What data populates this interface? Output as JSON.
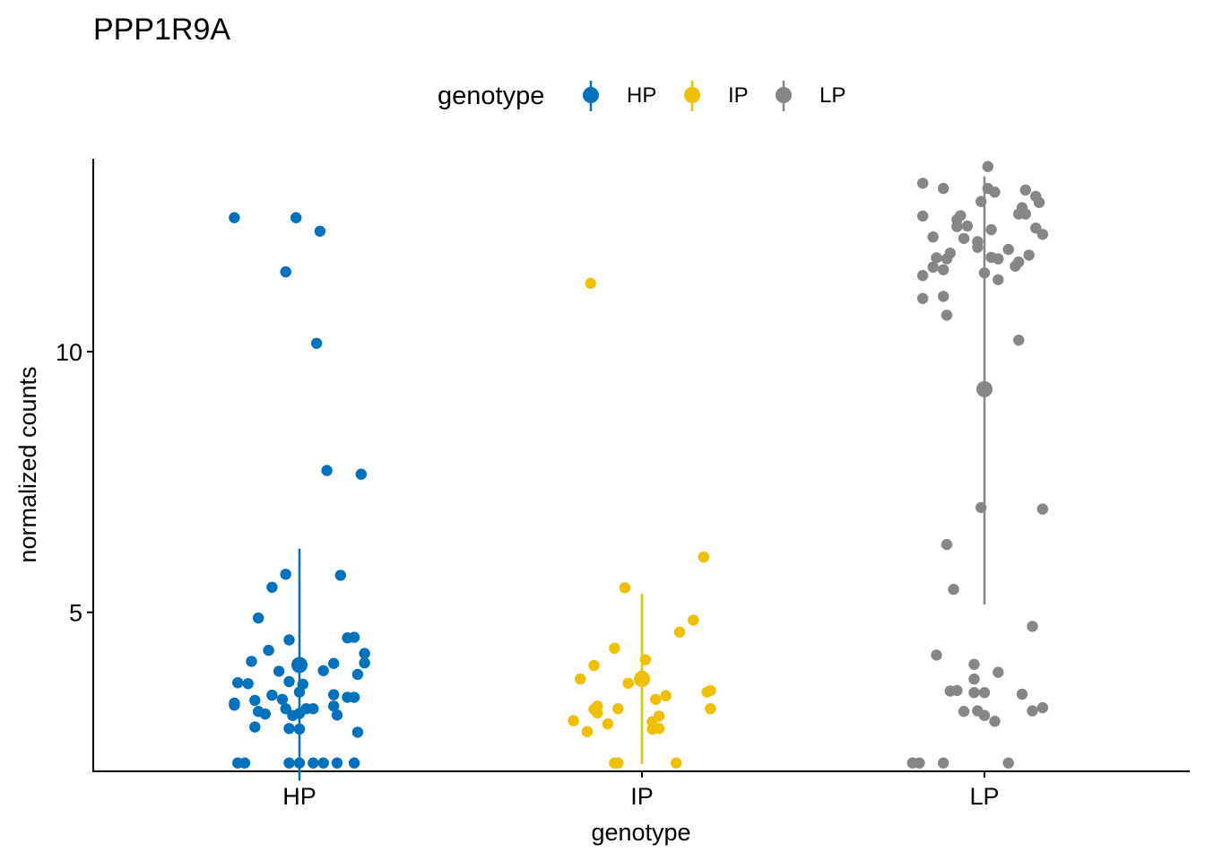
{
  "chart_data": {
    "type": "scatter",
    "title": "PPP1R9A",
    "xlabel": "genotype",
    "ylabel": "normalized counts",
    "categories": [
      "HP",
      "IP",
      "LP"
    ],
    "yticks": [
      5,
      10
    ],
    "ylim": [
      1.95,
      13.7
    ],
    "grid": false,
    "legend": {
      "title": "genotype",
      "position": "top",
      "entries": [
        "HP",
        "IP",
        "LP"
      ]
    },
    "series": [
      {
        "name": "HP",
        "color": "#0072BD",
        "summary": {
          "mean": 3.99,
          "low": 1.77,
          "high": 6.22
        },
        "points": [
          {
            "x": -0.19,
            "y": 12.57
          },
          {
            "x": 0.06,
            "y": 12.31
          },
          {
            "x": -0.01,
            "y": 12.57
          },
          {
            "x": -0.04,
            "y": 11.53
          },
          {
            "x": 0.05,
            "y": 10.16
          },
          {
            "x": 0.08,
            "y": 7.72
          },
          {
            "x": 0.18,
            "y": 7.65
          },
          {
            "x": -0.04,
            "y": 5.73
          },
          {
            "x": 0.12,
            "y": 5.71
          },
          {
            "x": -0.08,
            "y": 5.48
          },
          {
            "x": -0.12,
            "y": 4.89
          },
          {
            "x": -0.03,
            "y": 4.47
          },
          {
            "x": 0.14,
            "y": 4.51
          },
          {
            "x": 0.16,
            "y": 4.52
          },
          {
            "x": -0.09,
            "y": 4.27
          },
          {
            "x": 0.19,
            "y": 4.21
          },
          {
            "x": 0.1,
            "y": 4.02
          },
          {
            "x": -0.14,
            "y": 4.06
          },
          {
            "x": 0.19,
            "y": 4.03
          },
          {
            "x": -0.06,
            "y": 3.87
          },
          {
            "x": 0.07,
            "y": 3.88
          },
          {
            "x": 0.17,
            "y": 3.81
          },
          {
            "x": -0.18,
            "y": 3.65
          },
          {
            "x": -0.15,
            "y": 3.63
          },
          {
            "x": 0.01,
            "y": 3.62
          },
          {
            "x": -0.03,
            "y": 3.67
          },
          {
            "x": 0.1,
            "y": 3.42
          },
          {
            "x": 0.14,
            "y": 3.37
          },
          {
            "x": 0.16,
            "y": 3.37
          },
          {
            "x": -0.08,
            "y": 3.41
          },
          {
            "x": -0.05,
            "y": 3.33
          },
          {
            "x": 0.0,
            "y": 3.47
          },
          {
            "x": -0.13,
            "y": 3.31
          },
          {
            "x": -0.19,
            "y": 3.26
          },
          {
            "x": -0.19,
            "y": 3.22
          },
          {
            "x": 0.1,
            "y": 3.2
          },
          {
            "x": -0.04,
            "y": 3.15
          },
          {
            "x": 0.02,
            "y": 3.15
          },
          {
            "x": -0.12,
            "y": 3.1
          },
          {
            "x": -0.1,
            "y": 3.05
          },
          {
            "x": 0.04,
            "y": 3.15
          },
          {
            "x": -0.02,
            "y": 3.02
          },
          {
            "x": 0.11,
            "y": 3.03
          },
          {
            "x": 0.0,
            "y": 3.06
          },
          {
            "x": -0.13,
            "y": 2.8
          },
          {
            "x": -0.03,
            "y": 2.77
          },
          {
            "x": 0.0,
            "y": 2.76
          },
          {
            "x": 0.17,
            "y": 2.7
          },
          {
            "x": -0.18,
            "y": 2.11
          },
          {
            "x": -0.16,
            "y": 2.11
          },
          {
            "x": -0.03,
            "y": 2.11
          },
          {
            "x": 0.0,
            "y": 2.11
          },
          {
            "x": 0.04,
            "y": 2.11
          },
          {
            "x": 0.07,
            "y": 2.11
          },
          {
            "x": 0.11,
            "y": 2.11
          },
          {
            "x": 0.16,
            "y": 2.11
          }
        ]
      },
      {
        "name": "IP",
        "color": "#EFC000",
        "summary": {
          "mean": 3.72,
          "low": 2.09,
          "high": 5.36
        },
        "points": [
          {
            "x": -0.15,
            "y": 11.31
          },
          {
            "x": 0.18,
            "y": 6.06
          },
          {
            "x": -0.05,
            "y": 5.47
          },
          {
            "x": 0.15,
            "y": 4.85
          },
          {
            "x": 0.11,
            "y": 4.62
          },
          {
            "x": -0.08,
            "y": 4.31
          },
          {
            "x": 0.01,
            "y": 4.09
          },
          {
            "x": -0.14,
            "y": 3.98
          },
          {
            "x": -0.18,
            "y": 3.72
          },
          {
            "x": 0.0,
            "y": 3.78
          },
          {
            "x": -0.04,
            "y": 3.64
          },
          {
            "x": 0.2,
            "y": 3.5
          },
          {
            "x": 0.19,
            "y": 3.47
          },
          {
            "x": 0.07,
            "y": 3.4
          },
          {
            "x": 0.04,
            "y": 3.33
          },
          {
            "x": -0.13,
            "y": 3.2
          },
          {
            "x": -0.14,
            "y": 3.14
          },
          {
            "x": -0.07,
            "y": 3.15
          },
          {
            "x": 0.2,
            "y": 3.15
          },
          {
            "x": -0.13,
            "y": 3.07
          },
          {
            "x": 0.05,
            "y": 3.01
          },
          {
            "x": 0.03,
            "y": 2.9
          },
          {
            "x": -0.1,
            "y": 2.86
          },
          {
            "x": -0.2,
            "y": 2.92
          },
          {
            "x": 0.05,
            "y": 2.77
          },
          {
            "x": 0.03,
            "y": 2.76
          },
          {
            "x": -0.16,
            "y": 2.71
          },
          {
            "x": -0.08,
            "y": 2.11
          },
          {
            "x": -0.07,
            "y": 2.11
          },
          {
            "x": 0.1,
            "y": 2.11
          }
        ]
      },
      {
        "name": "LP",
        "color": "#868686",
        "summary": {
          "mean": 9.28,
          "low": 5.15,
          "high": 13.36
        },
        "points": [
          {
            "x": 0.01,
            "y": 13.55
          },
          {
            "x": -0.18,
            "y": 13.23
          },
          {
            "x": -0.12,
            "y": 13.13
          },
          {
            "x": 0.01,
            "y": 13.13
          },
          {
            "x": 0.03,
            "y": 13.06
          },
          {
            "x": 0.12,
            "y": 13.1
          },
          {
            "x": 0.15,
            "y": 12.98
          },
          {
            "x": -0.01,
            "y": 12.88
          },
          {
            "x": 0.16,
            "y": 12.86
          },
          {
            "x": 0.11,
            "y": 12.76
          },
          {
            "x": 0.1,
            "y": 12.64
          },
          {
            "x": 0.12,
            "y": 12.64
          },
          {
            "x": -0.07,
            "y": 12.61
          },
          {
            "x": -0.18,
            "y": 12.6
          },
          {
            "x": -0.08,
            "y": 12.53
          },
          {
            "x": -0.05,
            "y": 12.41
          },
          {
            "x": -0.08,
            "y": 12.4
          },
          {
            "x": 0.02,
            "y": 12.34
          },
          {
            "x": 0.15,
            "y": 12.37
          },
          {
            "x": 0.17,
            "y": 12.25
          },
          {
            "x": -0.15,
            "y": 12.2
          },
          {
            "x": -0.06,
            "y": 12.17
          },
          {
            "x": -0.02,
            "y": 12.11
          },
          {
            "x": -0.02,
            "y": 12.0
          },
          {
            "x": 0.07,
            "y": 11.96
          },
          {
            "x": -0.1,
            "y": 11.89
          },
          {
            "x": -0.14,
            "y": 11.8
          },
          {
            "x": 0.02,
            "y": 11.81
          },
          {
            "x": 0.04,
            "y": 11.78
          },
          {
            "x": -0.11,
            "y": 11.78
          },
          {
            "x": 0.13,
            "y": 11.85
          },
          {
            "x": 0.1,
            "y": 11.72
          },
          {
            "x": 0.09,
            "y": 11.64
          },
          {
            "x": -0.15,
            "y": 11.62
          },
          {
            "x": -0.12,
            "y": 11.57
          },
          {
            "x": -0.18,
            "y": 11.46
          },
          {
            "x": 0.0,
            "y": 11.51
          },
          {
            "x": 0.04,
            "y": 11.38
          },
          {
            "x": -0.18,
            "y": 11.02
          },
          {
            "x": -0.12,
            "y": 11.06
          },
          {
            "x": -0.11,
            "y": 10.7
          },
          {
            "x": 0.1,
            "y": 10.22
          },
          {
            "x": -0.01,
            "y": 7.01
          },
          {
            "x": 0.17,
            "y": 6.98
          },
          {
            "x": -0.11,
            "y": 6.3
          },
          {
            "x": -0.09,
            "y": 5.44
          },
          {
            "x": 0.14,
            "y": 4.73
          },
          {
            "x": -0.14,
            "y": 4.18
          },
          {
            "x": -0.03,
            "y": 4.0
          },
          {
            "x": 0.04,
            "y": 3.85
          },
          {
            "x": -0.03,
            "y": 3.72
          },
          {
            "x": -0.1,
            "y": 3.49
          },
          {
            "x": -0.08,
            "y": 3.5
          },
          {
            "x": -0.03,
            "y": 3.46
          },
          {
            "x": 0.0,
            "y": 3.46
          },
          {
            "x": 0.11,
            "y": 3.43
          },
          {
            "x": 0.17,
            "y": 3.17
          },
          {
            "x": 0.14,
            "y": 3.11
          },
          {
            "x": -0.06,
            "y": 3.1
          },
          {
            "x": 0.0,
            "y": 3.02
          },
          {
            "x": -0.02,
            "y": 3.11
          },
          {
            "x": 0.03,
            "y": 2.91
          },
          {
            "x": -0.21,
            "y": 2.11
          },
          {
            "x": -0.19,
            "y": 2.11
          },
          {
            "x": -0.12,
            "y": 2.11
          },
          {
            "x": 0.07,
            "y": 2.11
          }
        ]
      }
    ]
  }
}
